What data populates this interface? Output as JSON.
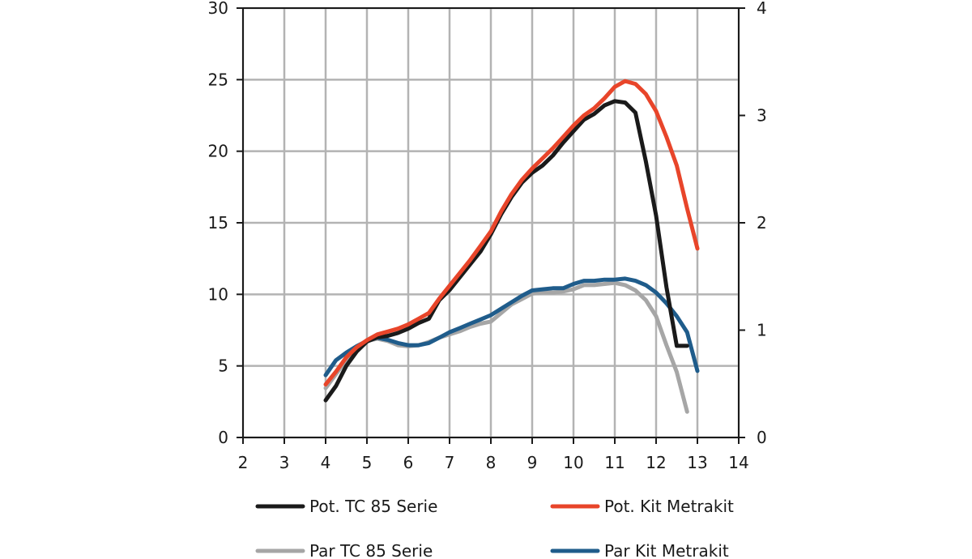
{
  "chart_data": {
    "type": "line",
    "title": "",
    "xlabel": "",
    "ylabel": "",
    "y2label": "",
    "xlim": [
      2,
      14
    ],
    "ylim": [
      0,
      30
    ],
    "y2lim": [
      0,
      4
    ],
    "xticks": [
      "2",
      "3",
      "4",
      "5",
      "6",
      "7",
      "8",
      "9",
      "10",
      "11",
      "12",
      "13",
      "14"
    ],
    "yticks": [
      "0",
      "5",
      "10",
      "15",
      "20",
      "25",
      "30"
    ],
    "y2ticks": [
      "0",
      "1",
      "2",
      "3",
      "4"
    ],
    "grid": true,
    "legend_position": "bottom",
    "series": [
      {
        "name": "Pot. TC 85 Serie",
        "axis": "left",
        "color": "#1a1a1a",
        "x": [
          4.0,
          4.25,
          4.5,
          4.75,
          5.0,
          5.25,
          5.5,
          5.75,
          6.0,
          6.25,
          6.5,
          6.75,
          7.0,
          7.25,
          7.5,
          7.75,
          8.0,
          8.25,
          8.5,
          8.75,
          9.0,
          9.25,
          9.5,
          9.75,
          10.0,
          10.25,
          10.5,
          10.75,
          11.0,
          11.25,
          11.5,
          11.75,
          12.0,
          12.25,
          12.5,
          12.75
        ],
        "y": [
          2.6,
          3.6,
          5.0,
          6.0,
          6.7,
          7.0,
          7.1,
          7.3,
          7.6,
          8.0,
          8.3,
          9.6,
          10.3,
          11.2,
          12.1,
          13.0,
          14.2,
          15.6,
          16.8,
          17.8,
          18.5,
          19.0,
          19.7,
          20.6,
          21.4,
          22.2,
          22.6,
          23.2,
          23.5,
          23.4,
          22.7,
          19.3,
          15.5,
          10.5,
          6.4,
          6.4
        ]
      },
      {
        "name": "Pot. Kit Metrakit",
        "axis": "left",
        "color": "#e8452a",
        "x": [
          4.0,
          4.25,
          4.5,
          4.75,
          5.0,
          5.25,
          5.5,
          5.75,
          6.0,
          6.25,
          6.5,
          6.75,
          7.0,
          7.25,
          7.5,
          7.75,
          8.0,
          8.25,
          8.5,
          8.75,
          9.0,
          9.25,
          9.5,
          9.75,
          10.0,
          10.25,
          10.5,
          10.75,
          11.0,
          11.25,
          11.5,
          11.75,
          12.0,
          12.25,
          12.5,
          12.75,
          13.0
        ],
        "y": [
          3.7,
          4.6,
          5.6,
          6.3,
          6.8,
          7.2,
          7.4,
          7.6,
          7.9,
          8.3,
          8.7,
          9.7,
          10.6,
          11.5,
          12.4,
          13.4,
          14.4,
          15.8,
          17.0,
          18.0,
          18.8,
          19.5,
          20.2,
          21.0,
          21.8,
          22.5,
          23.0,
          23.7,
          24.5,
          24.9,
          24.7,
          24.0,
          22.8,
          21.0,
          19.0,
          16.0,
          13.2
        ]
      },
      {
        "name": "Par TC 85 Serie",
        "axis": "right",
        "color": "#a6a6a6",
        "x": [
          4.0,
          4.25,
          4.5,
          4.75,
          5.0,
          5.25,
          5.5,
          5.75,
          6.0,
          6.25,
          6.5,
          6.75,
          7.0,
          7.25,
          7.5,
          7.75,
          8.0,
          8.25,
          8.5,
          8.75,
          9.0,
          9.25,
          9.5,
          9.75,
          10.0,
          10.25,
          10.5,
          10.75,
          11.0,
          11.25,
          11.5,
          11.75,
          12.0,
          12.25,
          12.5,
          12.75
        ],
        "y": [
          0.46,
          0.59,
          0.72,
          0.83,
          0.9,
          0.92,
          0.9,
          0.86,
          0.85,
          0.86,
          0.89,
          0.93,
          0.96,
          0.99,
          1.03,
          1.06,
          1.08,
          1.16,
          1.24,
          1.29,
          1.34,
          1.35,
          1.35,
          1.36,
          1.38,
          1.42,
          1.42,
          1.43,
          1.44,
          1.42,
          1.37,
          1.28,
          1.13,
          0.86,
          0.61,
          0.24
        ]
      },
      {
        "name": "Par Kit Metrakit",
        "axis": "right",
        "color": "#1f5c8b",
        "x": [
          4.0,
          4.25,
          4.5,
          4.75,
          5.0,
          5.25,
          5.5,
          5.75,
          6.0,
          6.25,
          6.5,
          6.75,
          7.0,
          7.25,
          7.5,
          7.75,
          8.0,
          8.25,
          8.5,
          8.75,
          9.0,
          9.25,
          9.5,
          9.75,
          10.0,
          10.25,
          10.5,
          10.75,
          11.0,
          11.25,
          11.5,
          11.75,
          12.0,
          12.25,
          12.5,
          12.75,
          13.0
        ],
        "y": [
          0.58,
          0.72,
          0.79,
          0.85,
          0.9,
          0.93,
          0.91,
          0.88,
          0.86,
          0.86,
          0.88,
          0.93,
          0.98,
          1.02,
          1.06,
          1.1,
          1.14,
          1.2,
          1.26,
          1.32,
          1.37,
          1.38,
          1.39,
          1.39,
          1.43,
          1.46,
          1.46,
          1.47,
          1.47,
          1.48,
          1.46,
          1.42,
          1.35,
          1.25,
          1.13,
          0.98,
          0.62
        ]
      }
    ]
  }
}
